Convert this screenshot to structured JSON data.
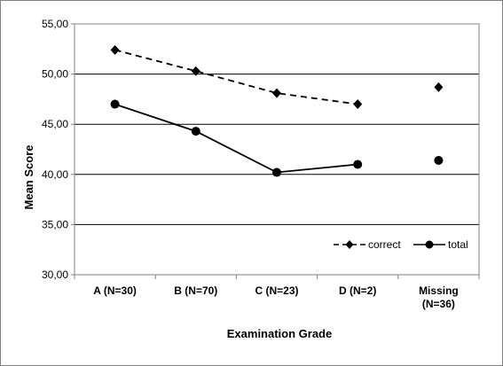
{
  "chart_data": {
    "type": "line",
    "categories": [
      "A (N=30)",
      "B (N=70)",
      "C (N=23)",
      "D (N=2)",
      "Missing (N=36)"
    ],
    "category_lines": [
      [
        "A (N=30)"
      ],
      [
        "B (N=70)"
      ],
      [
        "C (N=23)"
      ],
      [
        "D (N=2)"
      ],
      [
        "Missing",
        "(N=36)"
      ]
    ],
    "series": [
      {
        "name": "correct",
        "values": [
          52.4,
          50.3,
          48.1,
          47.0,
          48.7
        ],
        "marker": "diamond",
        "line": "dashed",
        "connect_last": false
      },
      {
        "name": "total",
        "values": [
          47.0,
          44.3,
          40.2,
          41.0,
          41.4
        ],
        "marker": "circle",
        "line": "solid",
        "connect_last": false
      }
    ],
    "xlabel": "Examination Grade",
    "ylabel": "Mean Score",
    "ylim": [
      30,
      55
    ],
    "yticks": [
      30,
      35,
      40,
      45,
      50,
      55
    ],
    "ytick_labels": [
      "30,00",
      "35,00",
      "40,00",
      "45,00",
      "50,00",
      "55,00"
    ],
    "grid": "horizontal",
    "legend": "bottom-right",
    "colors": {
      "series": "#000000",
      "grid": "#000000",
      "plot_border": "#808080",
      "frame": "#7f7f7f"
    }
  }
}
